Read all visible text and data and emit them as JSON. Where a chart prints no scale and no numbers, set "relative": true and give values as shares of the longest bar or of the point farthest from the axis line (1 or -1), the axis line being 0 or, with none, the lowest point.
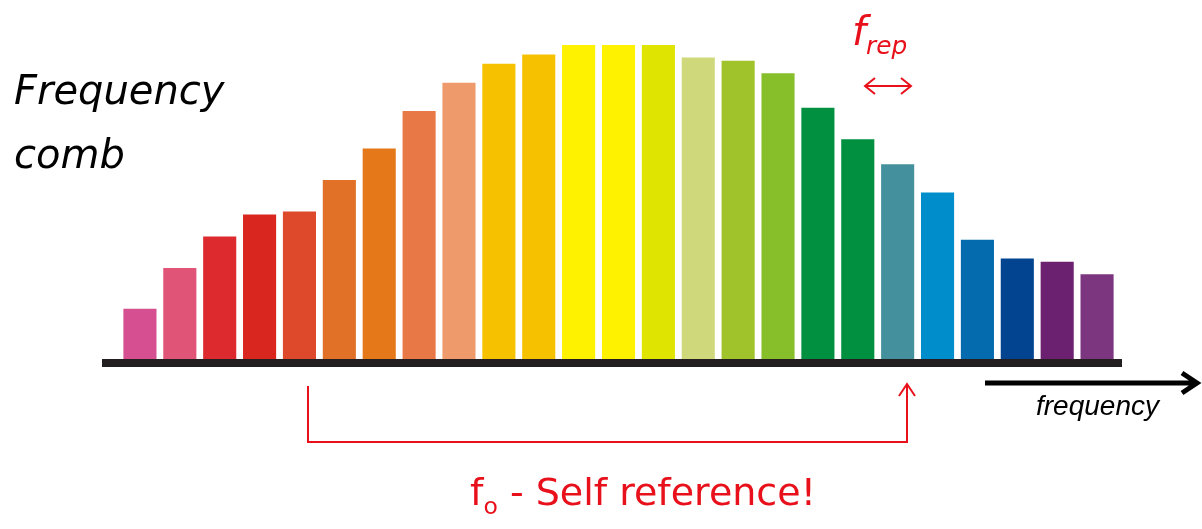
{
  "chart_data": {
    "type": "bar",
    "title": "Frequency comb",
    "xlabel": "frequency",
    "relative": true,
    "categories": [
      null,
      null,
      null,
      null,
      null,
      null,
      null,
      null,
      null,
      null,
      null,
      null,
      null,
      null,
      null,
      null,
      null,
      null,
      null,
      null,
      null,
      null,
      null,
      null,
      null
    ],
    "values": [
      0.16,
      0.29,
      0.39,
      0.46,
      0.47,
      0.57,
      0.67,
      0.79,
      0.88,
      0.94,
      0.97,
      1,
      1,
      1,
      0.96,
      0.95,
      0.91,
      0.8,
      0.7,
      0.62,
      0.53,
      0.38,
      0.32,
      0.31,
      0.27
    ],
    "colors": [
      "#d64f91",
      "#e05478",
      "#dc2a2e",
      "#d9261f",
      "#de482b",
      "#e07127",
      "#e57818",
      "#e87947",
      "#ee9a6a",
      "#f6c200",
      "#f6c200",
      "#fff200",
      "#fff200",
      "#dfe500",
      "#cfd97c",
      "#a0c22a",
      "#86bf2a",
      "#00903f",
      "#00903f",
      "#44909d",
      "#008dcc",
      "#036bae",
      "#02448f",
      "#6b2070",
      "#7c3680"
    ],
    "annotations": [
      "f$_{rep}$",
      "f$_{o}$ - Self reference!"
    ]
  }
}
